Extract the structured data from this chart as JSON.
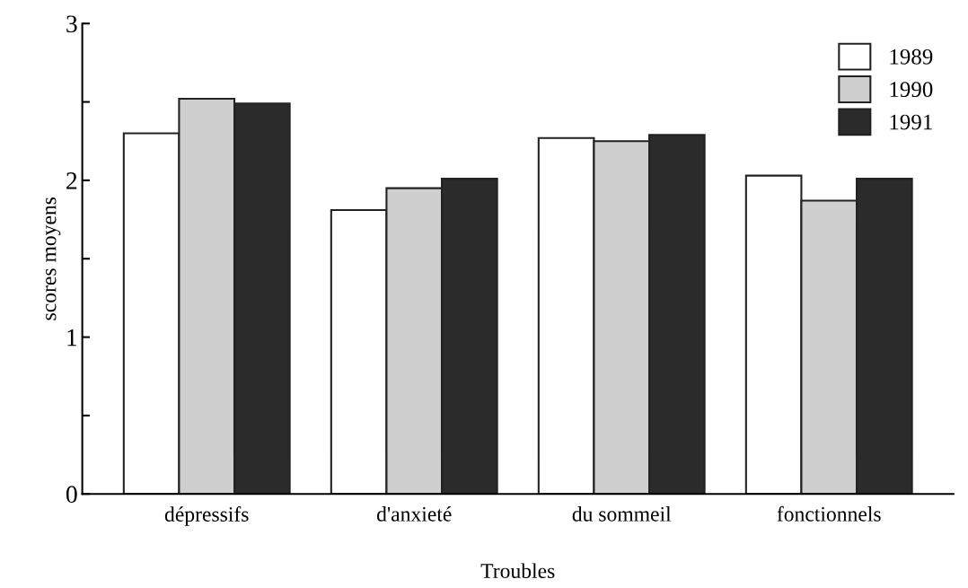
{
  "chart_data": {
    "type": "bar",
    "xlabel": "Troubles",
    "ylabel": "scores moyens",
    "categories": [
      "dépressifs",
      "d'anxieté",
      "du sommeil",
      "fonctionnels"
    ],
    "series": [
      {
        "name": "1989",
        "color": "#ffffff",
        "values": [
          2.3,
          1.81,
          2.27,
          2.03
        ]
      },
      {
        "name": "1990",
        "color": "#cfcfcf",
        "values": [
          2.52,
          1.95,
          2.25,
          1.87
        ]
      },
      {
        "name": "1991",
        "color": "#2b2b2b",
        "values": [
          2.49,
          2.01,
          2.29,
          2.01
        ]
      }
    ],
    "ylim": [
      0,
      3
    ],
    "yticks": [
      0,
      {
        "value": 0.5,
        "label": null
      },
      1,
      {
        "value": 1.5,
        "label": null
      },
      2,
      {
        "value": 2.5,
        "label": null
      },
      3
    ],
    "grid": false,
    "legend": "top right"
  }
}
